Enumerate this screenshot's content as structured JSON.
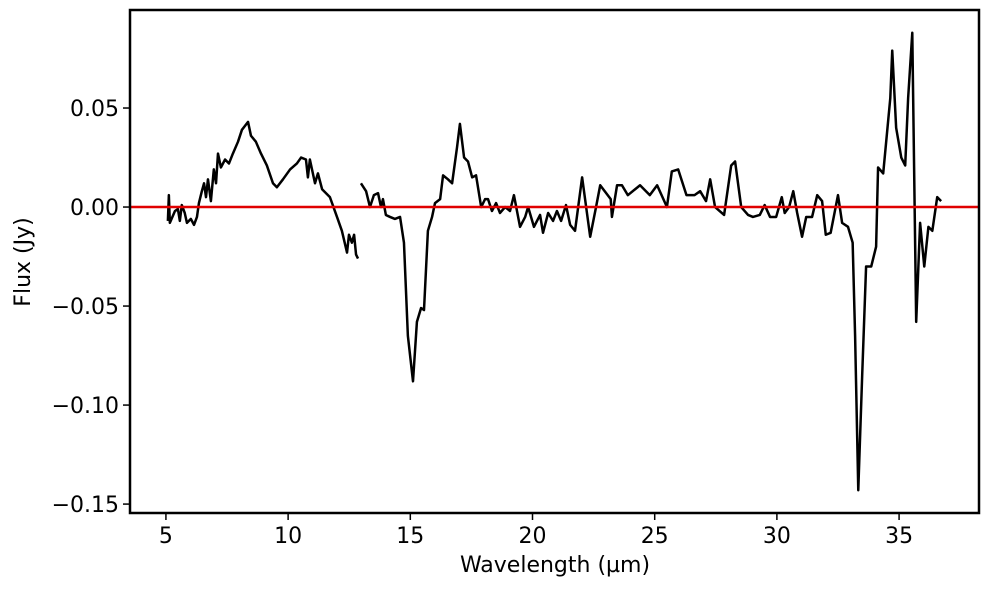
{
  "chart_data": {
    "type": "line",
    "xlabel": "Wavelength (µm)",
    "ylabel": "Flux (Jy)",
    "xlim": [
      3.53,
      38.27
    ],
    "ylim": [
      -0.1545,
      0.0995
    ],
    "xticks": [
      5,
      10,
      15,
      20,
      25,
      30,
      35
    ],
    "yticks": [
      {
        "value": -0.15,
        "label": "−0.15"
      },
      {
        "value": -0.1,
        "label": "−0.10"
      },
      {
        "value": -0.05,
        "label": "−0.05"
      },
      {
        "value": 0,
        "label": "0.00"
      },
      0.05
    ],
    "grid": false,
    "reference_line": {
      "y": 0,
      "color": "#e00000"
    },
    "x": [
      5.08,
      5.12,
      5.16,
      5.37,
      5.49,
      5.57,
      5.65,
      5.77,
      5.86,
      6.02,
      6.15,
      6.27,
      6.35,
      6.47,
      6.56,
      6.64,
      6.72,
      6.84,
      6.96,
      7.05,
      7.13,
      7.25,
      7.42,
      7.58,
      7.74,
      7.95,
      8.11,
      8.36,
      8.48,
      8.68,
      8.89,
      9.13,
      9.38,
      9.54,
      9.79,
      10.08,
      10.36,
      10.53,
      10.73,
      10.81,
      10.89,
      11.1,
      11.22,
      11.39,
      11.71,
      12.0,
      12.2,
      12.41,
      12.49,
      12.61,
      12.7,
      12.78,
      12.86,
      null,
      12.98,
      13.19,
      13.35,
      13.51,
      13.68,
      13.8,
      13.88,
      14.0,
      14.17,
      14.37,
      14.58,
      14.74,
      14.9,
      15.11,
      15.27,
      15.44,
      15.56,
      15.72,
      15.89,
      16.01,
      16.22,
      16.34,
      16.54,
      16.71,
      16.91,
      17.03,
      17.2,
      17.36,
      17.53,
      17.69,
      17.9,
      18.06,
      18.18,
      18.34,
      18.51,
      18.67,
      18.88,
      19.08,
      19.24,
      19.49,
      19.7,
      19.82,
      20.06,
      20.31,
      20.43,
      20.64,
      20.84,
      21.0,
      21.17,
      21.37,
      21.54,
      21.74,
      22.03,
      22.36,
      22.6,
      22.77,
      23.2,
      23.25,
      23.46,
      23.66,
      23.9,
      24.4,
      24.8,
      25.1,
      25.5,
      25.7,
      25.96,
      26.3,
      26.63,
      26.86,
      27.1,
      27.27,
      27.47,
      27.84,
      28.13,
      28.29,
      28.54,
      28.82,
      29.02,
      29.3,
      29.5,
      29.72,
      29.97,
      30.2,
      30.32,
      30.5,
      30.67,
      30.83,
      31.03,
      31.2,
      31.44,
      31.65,
      31.85,
      32.0,
      32.2,
      32.5,
      32.67,
      32.91,
      33.1,
      33.2,
      33.33,
      33.49,
      33.65,
      33.86,
      34.06,
      34.14,
      34.35,
      34.64,
      34.72,
      34.88,
      35.09,
      35.25,
      35.37,
      35.54,
      35.7,
      35.86,
      36.03,
      36.2,
      36.36,
      36.56,
      36.72
    ],
    "series": [
      {
        "name": "Flux",
        "color": "#000000",
        "values": [
          -0.007,
          0.006,
          -0.008,
          -0.002,
          -0.001,
          -0.007,
          0.001,
          -0.003,
          -0.008,
          -0.006,
          -0.009,
          -0.005,
          0.002,
          0.008,
          0.012,
          0.005,
          0.014,
          0.003,
          0.019,
          0.012,
          0.027,
          0.02,
          0.024,
          0.022,
          0.027,
          0.033,
          0.039,
          0.043,
          0.036,
          0.033,
          0.027,
          0.021,
          0.012,
          0.01,
          0.014,
          0.019,
          0.022,
          0.025,
          0.024,
          0.015,
          0.024,
          0.012,
          0.017,
          0.009,
          0.005,
          -0.005,
          -0.012,
          -0.023,
          -0.014,
          -0.018,
          -0.014,
          -0.024,
          -0.026,
          null,
          0.012,
          0.008,
          0.0,
          0.006,
          0.007,
          0.0,
          0.004,
          -0.004,
          -0.005,
          -0.006,
          -0.005,
          -0.018,
          -0.065,
          -0.088,
          -0.058,
          -0.051,
          -0.052,
          -0.012,
          -0.005,
          0.002,
          0.004,
          0.016,
          0.014,
          0.012,
          0.03,
          0.042,
          0.025,
          0.023,
          0.015,
          0.016,
          0.0,
          0.004,
          0.004,
          -0.002,
          0.002,
          -0.003,
          0.0,
          -0.002,
          0.006,
          -0.01,
          -0.005,
          0.0,
          -0.01,
          -0.004,
          -0.013,
          -0.003,
          -0.007,
          -0.002,
          -0.007,
          0.001,
          -0.009,
          -0.012,
          0.015,
          -0.015,
          0.0,
          0.011,
          0.004,
          -0.005,
          0.011,
          0.011,
          0.006,
          0.011,
          0.006,
          0.011,
          0.0,
          0.018,
          0.019,
          0.006,
          0.006,
          0.008,
          0.003,
          0.014,
          0.0,
          -0.004,
          0.021,
          0.023,
          0.0,
          -0.004,
          -0.005,
          -0.004,
          0.001,
          -0.005,
          -0.005,
          0.005,
          -0.003,
          0.0,
          0.008,
          -0.003,
          -0.015,
          -0.005,
          -0.005,
          0.006,
          0.003,
          -0.014,
          -0.013,
          0.006,
          -0.008,
          -0.01,
          -0.018,
          -0.065,
          -0.143,
          -0.085,
          -0.03,
          -0.03,
          -0.02,
          0.02,
          0.017,
          0.055,
          0.079,
          0.04,
          0.025,
          0.021,
          0.055,
          0.088,
          -0.058,
          -0.008,
          -0.03,
          -0.01,
          -0.012,
          0.005,
          0.003
        ]
      }
    ]
  }
}
